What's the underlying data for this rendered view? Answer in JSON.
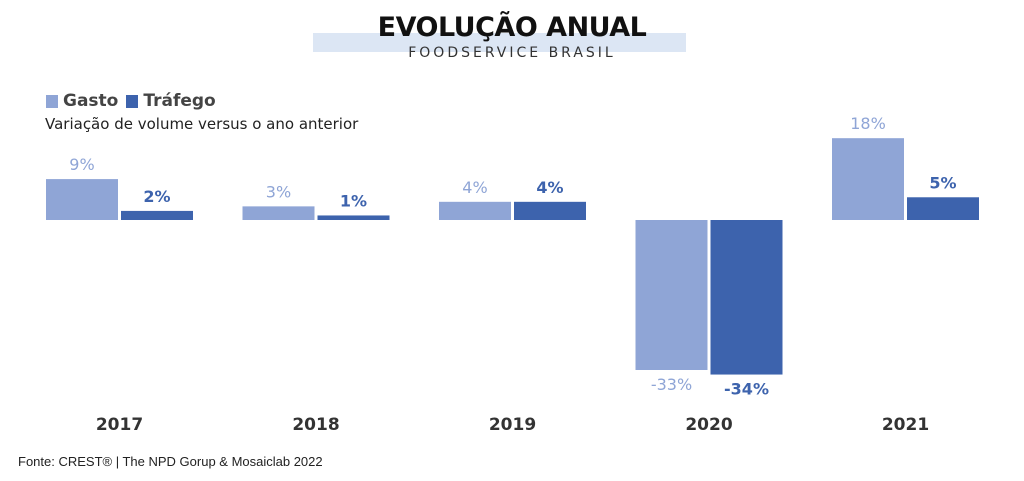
{
  "header": {
    "title": "EVOLUÇÃO ANUAL",
    "subtitle": "FOODSERVICE BRASIL"
  },
  "legend": {
    "items": [
      {
        "label": "Gasto",
        "color": "#8fa5d6"
      },
      {
        "label": "Tráfego",
        "color": "#3d63ad"
      }
    ]
  },
  "caption": "Variação de volume versus o ano anterior",
  "source": "Fonte: CREST® | The NPD Gorup &  Mosaiclab 2022",
  "chart_data": {
    "type": "bar",
    "categories": [
      "2017",
      "2018",
      "2019",
      "2020",
      "2021"
    ],
    "series": [
      {
        "name": "Gasto",
        "values": [
          9,
          3,
          4,
          -33,
          18
        ],
        "labels": [
          "9%",
          "3%",
          "4%",
          "-33%",
          "18%"
        ],
        "color": "#8fa5d6"
      },
      {
        "name": "Tráfego",
        "values": [
          2,
          1,
          4,
          -34,
          5
        ],
        "labels": [
          "2%",
          "1%",
          "4%",
          "-34%",
          "5%"
        ],
        "color": "#3d63ad"
      }
    ],
    "title": "EVOLUÇÃO ANUAL",
    "subtitle": "FOODSERVICE BRASIL",
    "ylabel": "Variação de volume versus o ano anterior",
    "ylim": [
      -34,
      18
    ],
    "grid": false,
    "legend_position": "top-left"
  }
}
